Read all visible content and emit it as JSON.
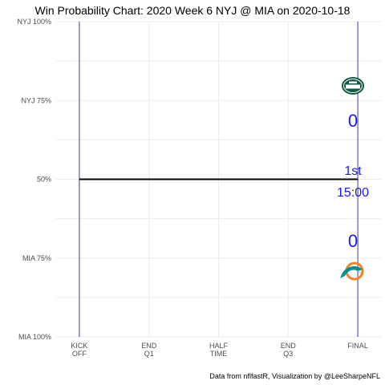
{
  "chart_data": {
    "type": "line",
    "title": "Win Probability Chart: 2020 Week 6 NYJ @ MIA on 2020-10-18",
    "y_ticks": [
      "NYJ 100%",
      "NYJ 75%",
      "50%",
      "MIA 75%",
      "MIA 100%"
    ],
    "y_tick_values": [
      1.0,
      0.75,
      0.5,
      0.25,
      0.0
    ],
    "ylim": [
      0,
      1
    ],
    "x_ticks": [
      {
        "line1": "KICK",
        "line2": "OFF",
        "value": 0
      },
      {
        "line1": "END",
        "line2": "Q1",
        "value": 900
      },
      {
        "line1": "HALF",
        "line2": "TIME",
        "value": 1800
      },
      {
        "line1": "END",
        "line2": "Q3",
        "value": 2700
      },
      {
        "line1": "FINAL",
        "line2": "",
        "value": 3600
      }
    ],
    "xlim": [
      -300,
      3900
    ],
    "series": [
      {
        "x": [
          0,
          3600
        ],
        "y": [
          0.5,
          0.5
        ]
      }
    ],
    "grid": true,
    "annotations": {
      "home_score": "0",
      "away_score": "0",
      "quarter": "1st",
      "clock": "15:00"
    },
    "teams": {
      "away": {
        "abbr": "NYJ",
        "logo": "jets-logo",
        "color": "#125740"
      },
      "home": {
        "abbr": "MIA",
        "logo": "dolphins-logo",
        "color": "#008E97"
      }
    },
    "caption": "Data from nflfastR, Visualization by @LeeSharpeNFL"
  }
}
